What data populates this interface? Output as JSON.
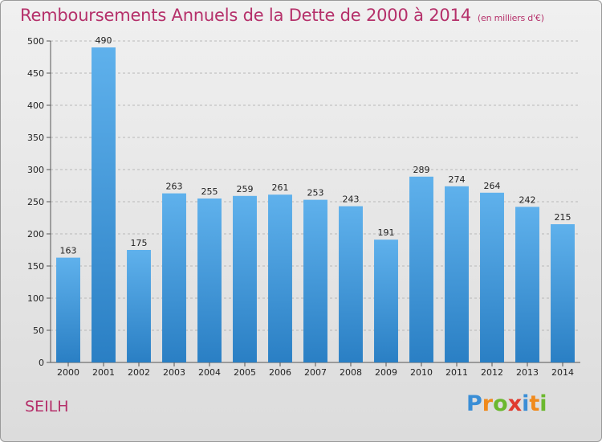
{
  "title": "Remboursements Annuels de la Dette de 2000 à 2014",
  "subtitle": "(en milliers d'€)",
  "commune": "SEILH",
  "logo": {
    "letters": [
      {
        "char": "P",
        "color": "#3a8ed6"
      },
      {
        "char": "r",
        "color": "#f08a1c"
      },
      {
        "char": "o",
        "color": "#6bb82f"
      },
      {
        "char": "x",
        "color": "#e03a2e"
      },
      {
        "char": "i",
        "color": "#3a8ed6"
      },
      {
        "char": "t",
        "color": "#f08a1c"
      },
      {
        "char": "i",
        "color": "#6bb82f"
      }
    ]
  },
  "chart_data": {
    "type": "bar",
    "categories": [
      "2000",
      "2001",
      "2002",
      "2003",
      "2004",
      "2005",
      "2006",
      "2007",
      "2008",
      "2009",
      "2010",
      "2011",
      "2012",
      "2013",
      "2014"
    ],
    "values": [
      163,
      490,
      175,
      263,
      255,
      259,
      261,
      253,
      243,
      191,
      289,
      274,
      264,
      242,
      215
    ],
    "ylim": [
      0,
      500
    ],
    "yticks": [
      0,
      50,
      100,
      150,
      200,
      250,
      300,
      350,
      400,
      450,
      500
    ],
    "grid": true,
    "bar_color": "#4a9fe0"
  }
}
